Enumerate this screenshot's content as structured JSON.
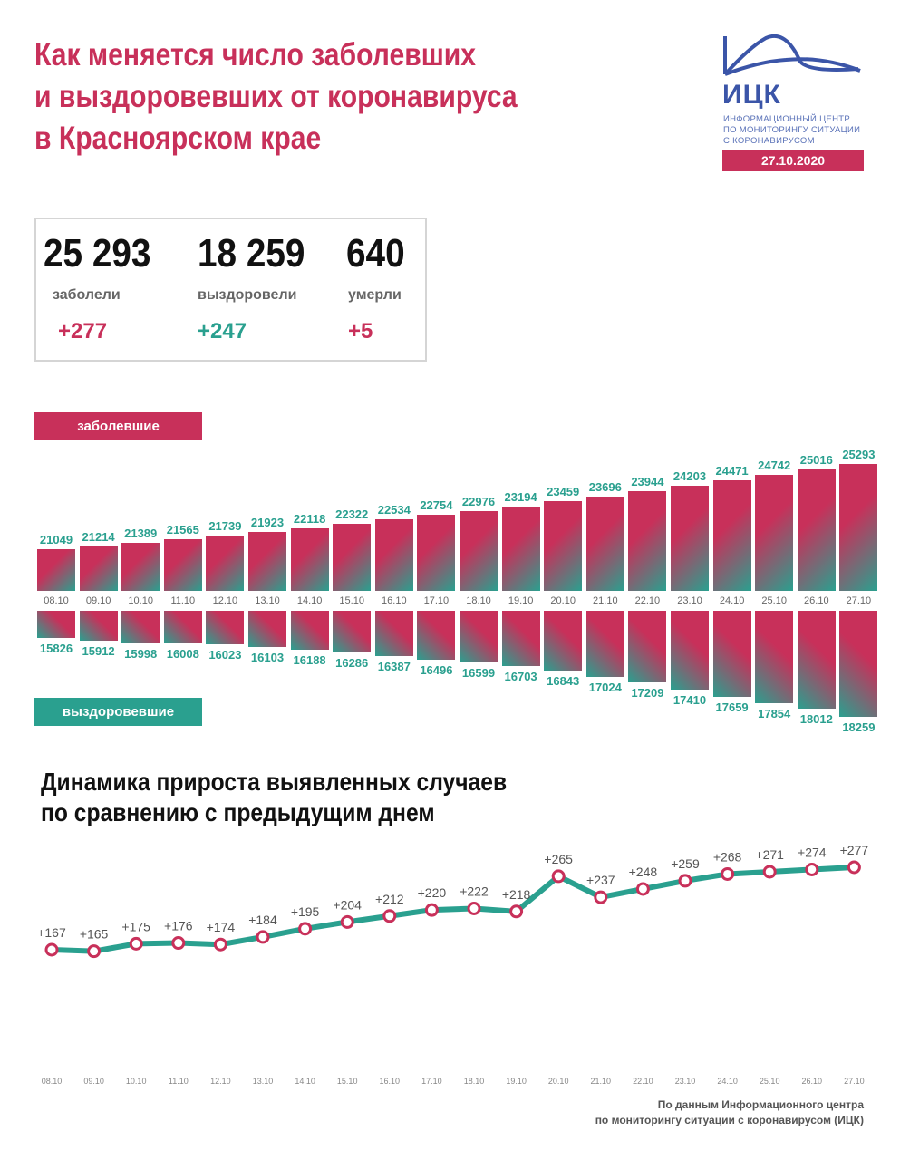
{
  "header": {
    "title_lines": [
      "Как меняется число заболевших",
      "и выздоровевших от коронавируса",
      "в Красноярском крае"
    ]
  },
  "logo": {
    "abbr": "ИЦК",
    "desc_lines": [
      "ИНФОРМАЦИОННЫЙ ЦЕНТР",
      "ПО МОНИТОРИНГУ СИТУАЦИИ",
      "С КОРОНАВИРУСОМ"
    ],
    "date": "27.10.2020"
  },
  "stats": [
    {
      "value": "25 293",
      "label": "заболели",
      "delta": "+277",
      "delta_color": "#c8305a"
    },
    {
      "value": "18 259",
      "label": "выздоровели",
      "delta": "+247",
      "delta_color": "#2aa08f"
    },
    {
      "value": "640",
      "label": "умерли",
      "delta": "+5",
      "delta_color": "#c8305a"
    }
  ],
  "colors": {
    "pink": "#c8305a",
    "teal": "#2aa08f",
    "line": "#2aa08f",
    "marker_stroke": "#c8305a"
  },
  "chart_data": [
    {
      "type": "bar",
      "categories": [
        "08.10",
        "09.10",
        "10.10",
        "11.10",
        "12.10",
        "13.10",
        "14.10",
        "15.10",
        "16.10",
        "17.10",
        "18.10",
        "19.10",
        "20.10",
        "21.10",
        "22.10",
        "23.10",
        "24.10",
        "25.10",
        "26.10",
        "27.10"
      ],
      "series": [
        {
          "name": "заболевшие",
          "values": [
            21049,
            21214,
            21389,
            21565,
            21739,
            21923,
            22118,
            22322,
            22534,
            22754,
            22976,
            23194,
            23459,
            23696,
            23944,
            24203,
            24471,
            24742,
            25016,
            25293
          ]
        },
        {
          "name": "выздоровевшие",
          "values": [
            15826,
            15912,
            15998,
            16008,
            16023,
            16103,
            16188,
            16286,
            16387,
            16496,
            16599,
            16703,
            16843,
            17024,
            17209,
            17410,
            17659,
            17854,
            18012,
            18259
          ]
        }
      ]
    },
    {
      "type": "line",
      "title": "Динамика прироста выявленных случаев по сравнению с предыдущим днем",
      "title_lines": [
        "Динамика прироста выявленных случаев",
        "по сравнению с предыдущим днем"
      ],
      "categories": [
        "08.10",
        "09.10",
        "10.10",
        "11.10",
        "12.10",
        "13.10",
        "14.10",
        "15.10",
        "16.10",
        "17.10",
        "18.10",
        "19.10",
        "20.10",
        "21.10",
        "22.10",
        "23.10",
        "24.10",
        "25.10",
        "26.10",
        "27.10"
      ],
      "values": [
        167,
        165,
        175,
        176,
        174,
        184,
        195,
        204,
        212,
        220,
        222,
        218,
        265,
        237,
        248,
        259,
        268,
        271,
        274,
        277
      ],
      "labels": [
        "+167",
        "+165",
        "+175",
        "+176",
        "+174",
        "+184",
        "+195",
        "+204",
        "+212",
        "+220",
        "+222",
        "+218",
        "+265",
        "+237",
        "+248",
        "+259",
        "+268",
        "+271",
        "+274",
        "+277"
      ]
    }
  ],
  "footer": {
    "lines": [
      "По данным Информационного центра",
      "по мониторингу ситуации с коронавирусом (ИЦК)"
    ]
  }
}
